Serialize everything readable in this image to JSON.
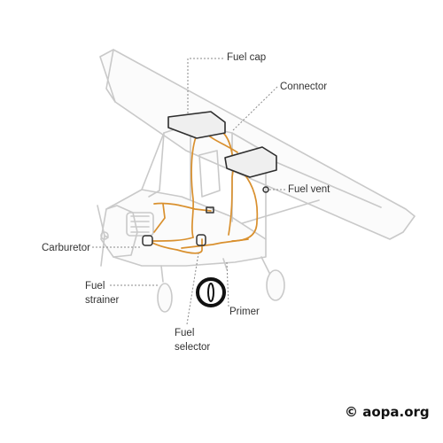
{
  "diagram": {
    "labels": {
      "fuel_cap": "Fuel cap",
      "connector": "Connector",
      "fuel_vent": "Fuel vent",
      "carburetor": "Carburetor",
      "fuel_strainer_line1": "Fuel",
      "fuel_strainer_line2": "strainer",
      "primer": "Primer",
      "fuel_selector_line1": "Fuel",
      "fuel_selector_line2": "selector"
    },
    "colors": {
      "fuel_line": "#d9902e",
      "airframe_outline": "#c9c9c9",
      "label_text": "#333333"
    }
  },
  "watermark": {
    "text": "© aopa.org"
  }
}
